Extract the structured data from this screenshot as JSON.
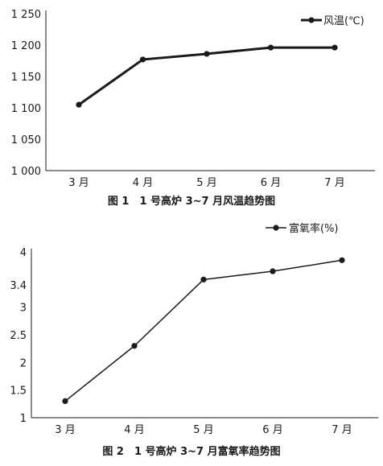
{
  "chart_data": [
    {
      "type": "line",
      "caption": "图 1　1 号高炉 3~7 月风温趋势图",
      "categories": [
        "3 月",
        "4 月",
        "5 月",
        "6 月",
        "7 月"
      ],
      "series": [
        {
          "name": "风温(℃)",
          "values": [
            1105,
            1177,
            1186,
            1196,
            1196
          ]
        }
      ],
      "y_ticks": [
        "1 000",
        "1 050",
        "1 100",
        "1 150",
        "1 200",
        "1 250"
      ],
      "ylim": [
        1000,
        1250
      ],
      "grid": false,
      "legend": "top-right",
      "line_color": "#1a1a1a"
    },
    {
      "type": "line",
      "caption": "图 2　1 号高炉 3~7 月富氧率趋势图",
      "categories": [
        "3 月",
        "4 月",
        "5 月",
        "6 月",
        "7 月"
      ],
      "series": [
        {
          "name": "富氧率(%)",
          "values": [
            1.3,
            2.3,
            3.5,
            3.65,
            3.85
          ]
        }
      ],
      "y_ticks": [
        "1",
        "1.5",
        "2",
        "2.5",
        "3",
        "3.4",
        "4"
      ],
      "ylim": [
        1,
        4
      ],
      "grid": false,
      "legend": "top-right",
      "line_color": "#1a1a1a"
    }
  ]
}
